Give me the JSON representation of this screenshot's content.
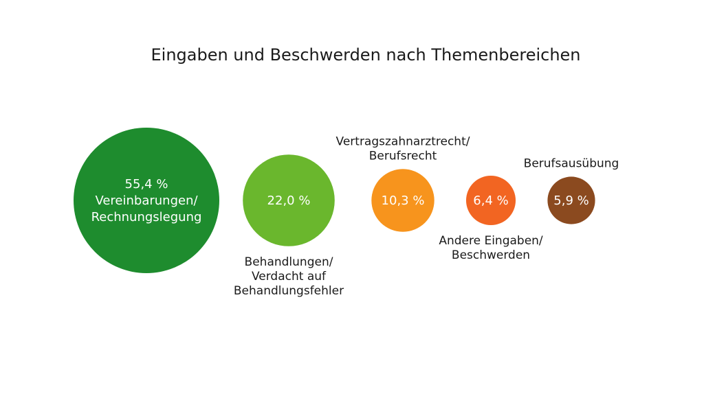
{
  "chart_data": {
    "type": "bubble",
    "title": "Eingaben und Beschwerden nach Themenbereichen",
    "unit": "%",
    "series": [
      {
        "value_label": "55,4 %",
        "value": 55.4,
        "category_lines": [
          "Vereinbarungen/",
          "Rechnungslegung"
        ],
        "label_position": "inside",
        "color": "#1e8c2e"
      },
      {
        "value_label": "22,0 %",
        "value": 22.0,
        "category_lines": [
          "Behandlungen/",
          "Verdacht auf",
          "Behandlungsfehler"
        ],
        "label_position": "below",
        "color": "#6ab72d"
      },
      {
        "value_label": "10,3 %",
        "value": 10.3,
        "category_lines": [
          "Vertragszahnarztrecht/",
          "Berufsrecht"
        ],
        "label_position": "above",
        "color": "#f7941d"
      },
      {
        "value_label": "6,4 %",
        "value": 6.4,
        "category_lines": [
          "Andere Eingaben/",
          "Beschwerden"
        ],
        "label_position": "below",
        "color": "#f26522"
      },
      {
        "value_label": "5,9 %",
        "value": 5.9,
        "category_lines": [
          "Berufsausübung"
        ],
        "label_position": "above",
        "color": "#8b4a1f"
      }
    ]
  }
}
